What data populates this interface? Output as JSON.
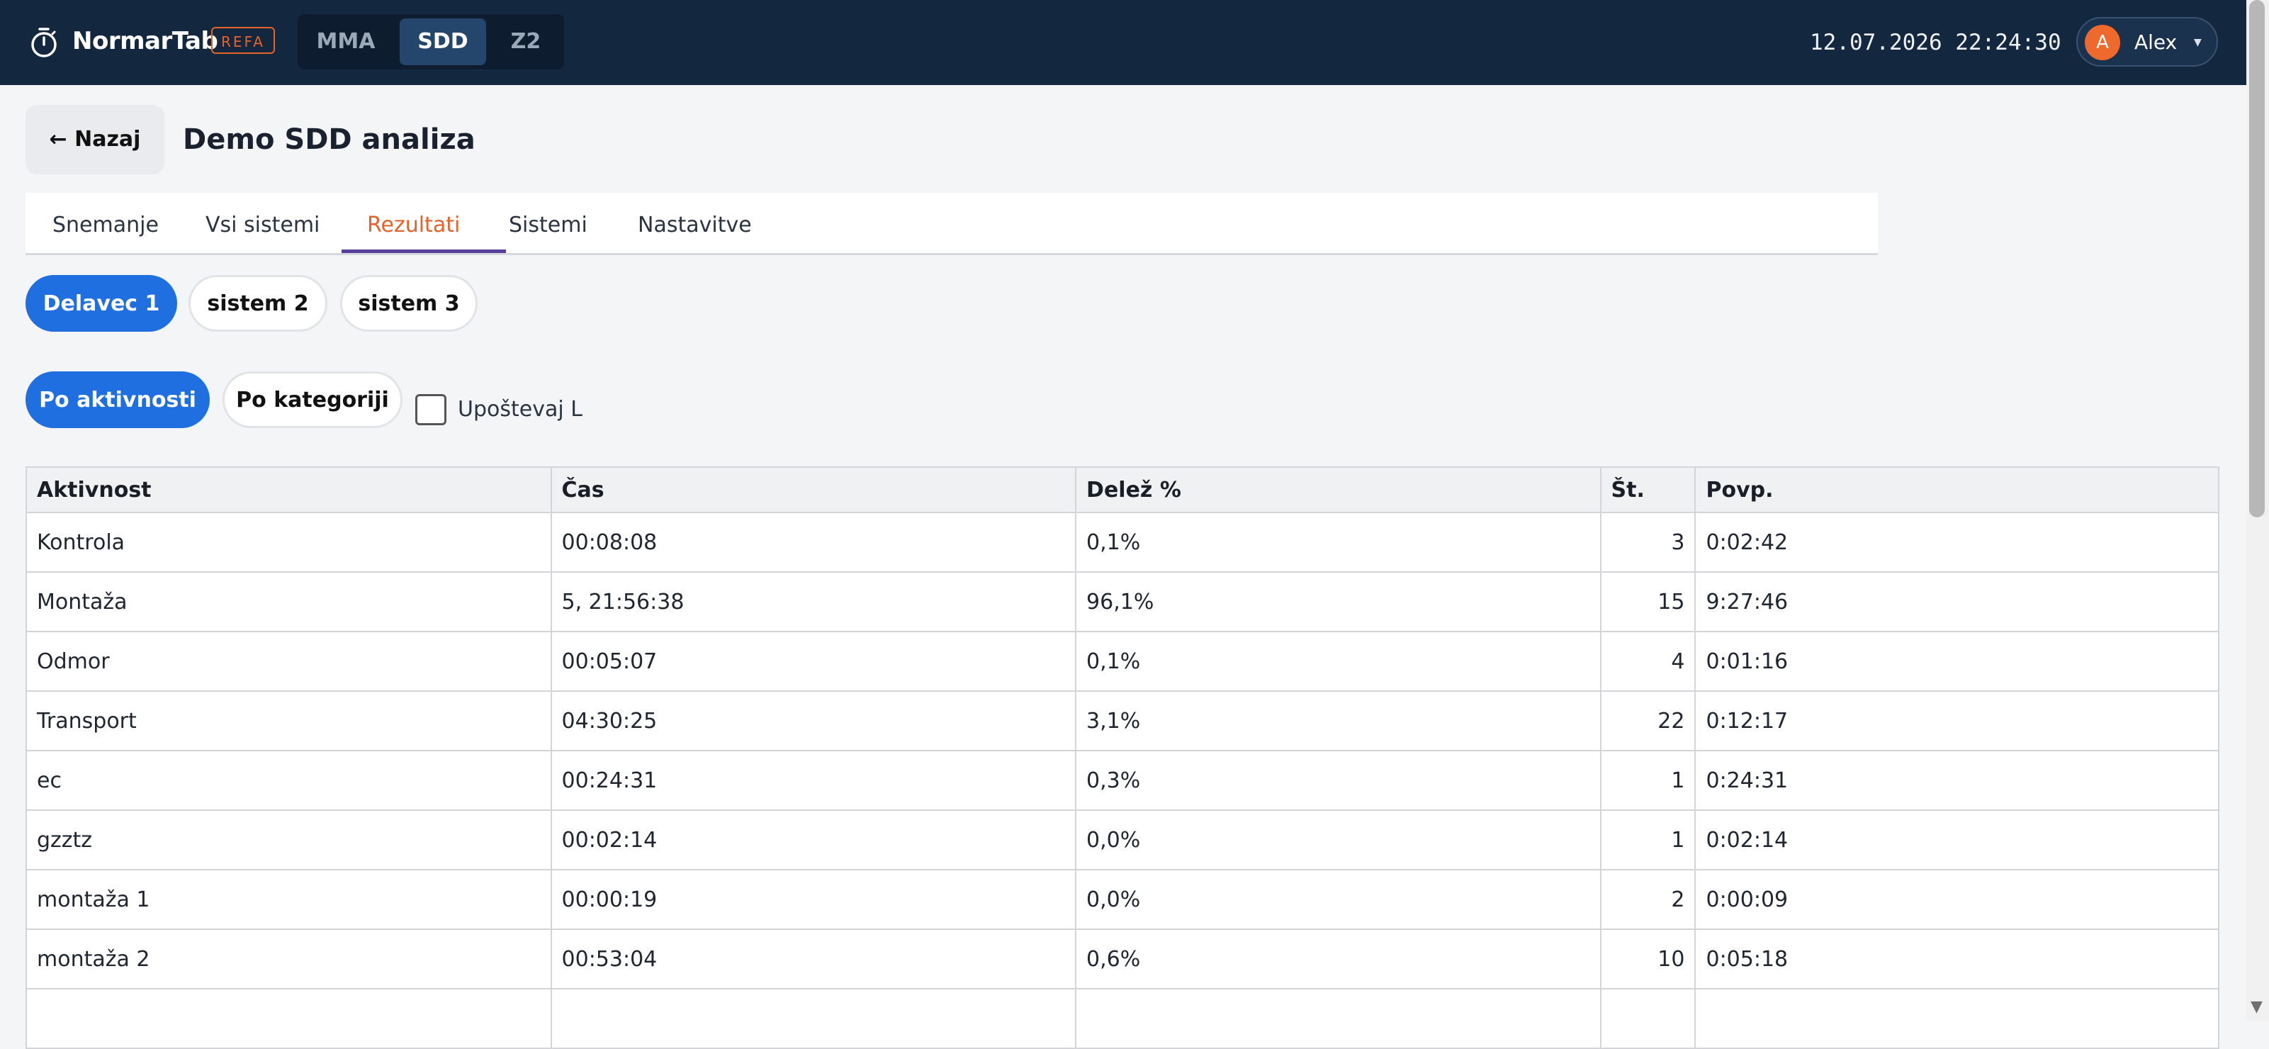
{
  "app": {
    "name": "NormarTab",
    "badge": "REFA",
    "modes": [
      "MMA",
      "SDD",
      "Z2"
    ],
    "active_mode": "SDD",
    "clock": "12.07.2026 22:24:30",
    "user": {
      "initial": "A",
      "name": "Alex"
    }
  },
  "page": {
    "back_label": "← Nazaj",
    "title": "Demo SDD analiza"
  },
  "tabs": [
    "Snemanje",
    "Vsi sistemi",
    "Rezultati",
    "Sistemi",
    "Nastavitve"
  ],
  "active_tab": "Rezultati",
  "workers": [
    "Delavec 1",
    "sistem 2",
    "sistem 3"
  ],
  "active_worker": "Delavec 1",
  "groupings": [
    "Po aktivnosti",
    "Po kategoriji"
  ],
  "active_grouping": "Po aktivnosti",
  "checkbox": {
    "label": "Upoštevaj L",
    "checked": false
  },
  "table": {
    "headers": [
      "Aktivnost",
      "Čas",
      "Delež %",
      "Št.",
      "Povp."
    ],
    "rows": [
      [
        "Kontrola",
        "00:08:08",
        "0,1%",
        "3",
        "0:02:42"
      ],
      [
        "Montaža",
        "5, 21:56:38",
        "96,1%",
        "15",
        "9:27:46"
      ],
      [
        "Odmor",
        "00:05:07",
        "0,1%",
        "4",
        "0:01:16"
      ],
      [
        "Transport",
        "04:30:25",
        "3,1%",
        "22",
        "0:12:17"
      ],
      [
        "ec",
        "00:24:31",
        "0,3%",
        "1",
        "0:24:31"
      ],
      [
        "gzztz",
        "00:02:14",
        "0,0%",
        "1",
        "0:02:14"
      ],
      [
        "montaža 1",
        "00:00:19",
        "0,0%",
        "2",
        "0:00:09"
      ],
      [
        "montaža 2",
        "00:53:04",
        "0,6%",
        "10",
        "0:05:18"
      ],
      [
        "",
        "",
        "",
        "",
        ""
      ]
    ]
  },
  "colors": {
    "topbar": "#13273f",
    "accent_blue": "#1f6fe0",
    "accent_orange": "#e5622b",
    "tab_underline": "#5a3f9a"
  },
  "icons": {
    "brand": "stopwatch-icon",
    "user_menu": "caret-down-icon",
    "scroll": "scroll-down-arrow-icon"
  }
}
